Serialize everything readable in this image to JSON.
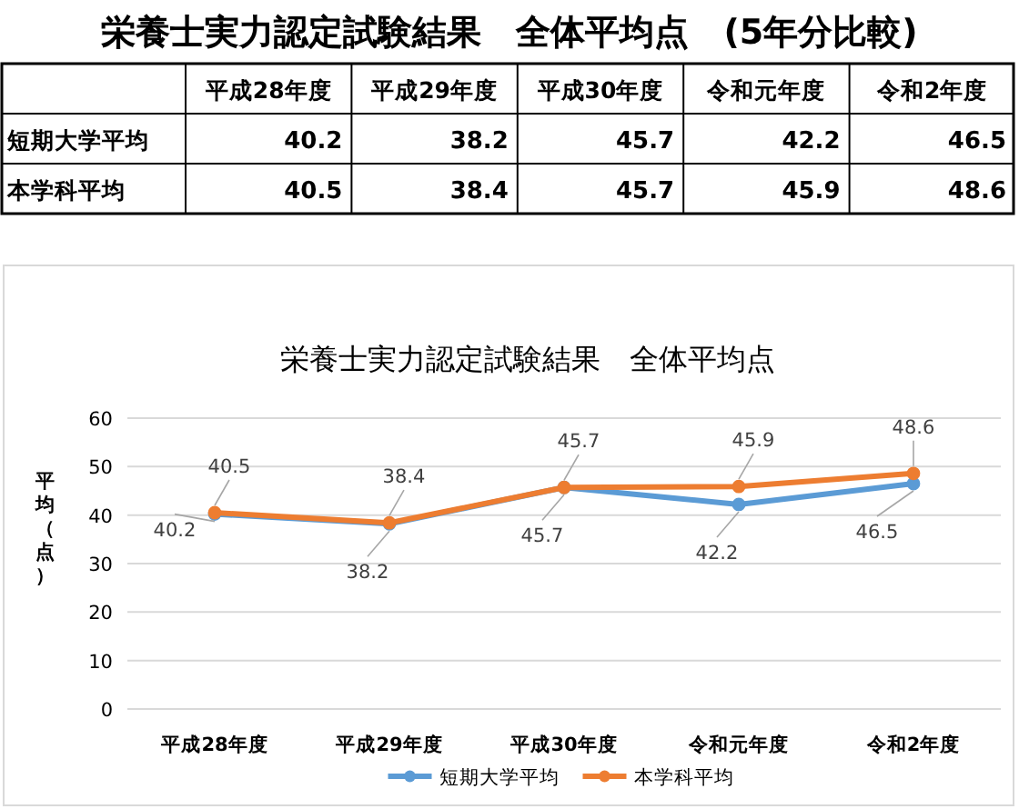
{
  "chart_data": [
    {
      "type": "other",
      "title": "栄養士実力認定試験結果　全体平均点　(5年分比較)",
      "categories": [
        "平成28年度",
        "平成29年度",
        "平成30年度",
        "令和元年度",
        "令和2年度"
      ],
      "series": [
        {
          "name": "短期大学平均",
          "values": [
            40.2,
            38.2,
            45.7,
            42.2,
            46.5
          ]
        },
        {
          "name": "本学科平均",
          "values": [
            40.5,
            38.4,
            45.7,
            45.9,
            48.6
          ]
        }
      ],
      "data_labels": true
    },
    {
      "type": "line",
      "title": "栄養士実力認定試験結果　全体平均点",
      "ylabel": "平均（点）",
      "categories": [
        "平成28年度",
        "平成29年度",
        "平成30年度",
        "令和元年度",
        "令和2年度"
      ],
      "series": [
        {
          "name": "短期大学平均",
          "color": "#5b9bd5",
          "values": [
            40.2,
            38.2,
            45.7,
            42.2,
            46.5
          ]
        },
        {
          "name": "本学科平均",
          "color": "#ed7d31",
          "values": [
            40.5,
            38.4,
            45.7,
            45.9,
            48.6
          ]
        }
      ],
      "ylim": [
        0,
        60
      ],
      "yticks": [
        0,
        10,
        20,
        30,
        40,
        50,
        60
      ],
      "grid": "y",
      "legend": "bottom",
      "marker": "circle",
      "line_style": "solid",
      "data_labels": true
    }
  ]
}
